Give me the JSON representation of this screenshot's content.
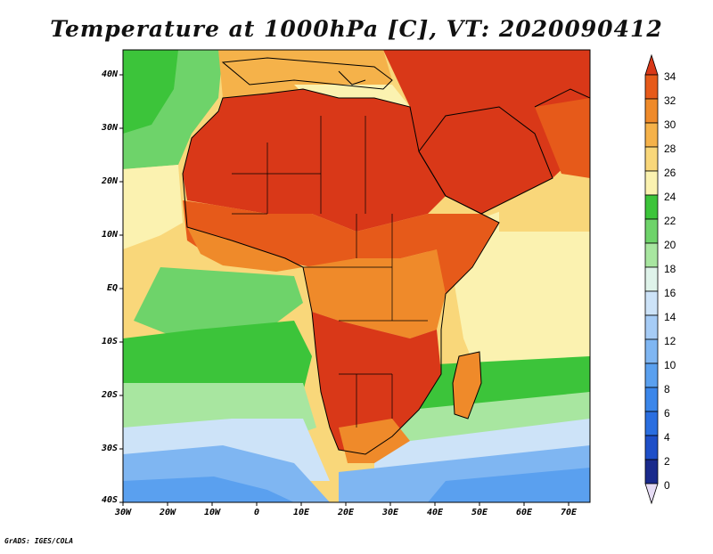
{
  "title": "Temperature at 1000hPa [C], VT: 2020090412",
  "credit": "GrADS: IGES/COLA",
  "map": {
    "variable": "Temperature at 1000hPa",
    "units": "C",
    "valid_time": "2020090412",
    "lat_ticks": [
      "40N",
      "30N",
      "20N",
      "10N",
      "EQ",
      "10S",
      "20S",
      "30S",
      "40S"
    ],
    "lon_ticks": [
      "30W",
      "20W",
      "10W",
      "0",
      "10E",
      "20E",
      "30E",
      "40E",
      "50E",
      "60E",
      "70E"
    ]
  },
  "colorbar": {
    "levels": [
      "0",
      "2",
      "4",
      "6",
      "8",
      "10",
      "12",
      "14",
      "16",
      "18",
      "20",
      "22",
      "24",
      "26",
      "28",
      "30",
      "32",
      "34"
    ],
    "colors": [
      "#e6dcf5",
      "#1a2a8c",
      "#1e4fc8",
      "#2a6ee0",
      "#3b86ea",
      "#5aa0ef",
      "#7fb6f2",
      "#a6ccf6",
      "#cde3f8",
      "#dff3ea",
      "#a8e6a0",
      "#6ed36a",
      "#3cc43a",
      "#fbf2b0",
      "#f9d77a",
      "#f5b24a",
      "#ef8a2a",
      "#e65a1a",
      "#d93818"
    ]
  }
}
